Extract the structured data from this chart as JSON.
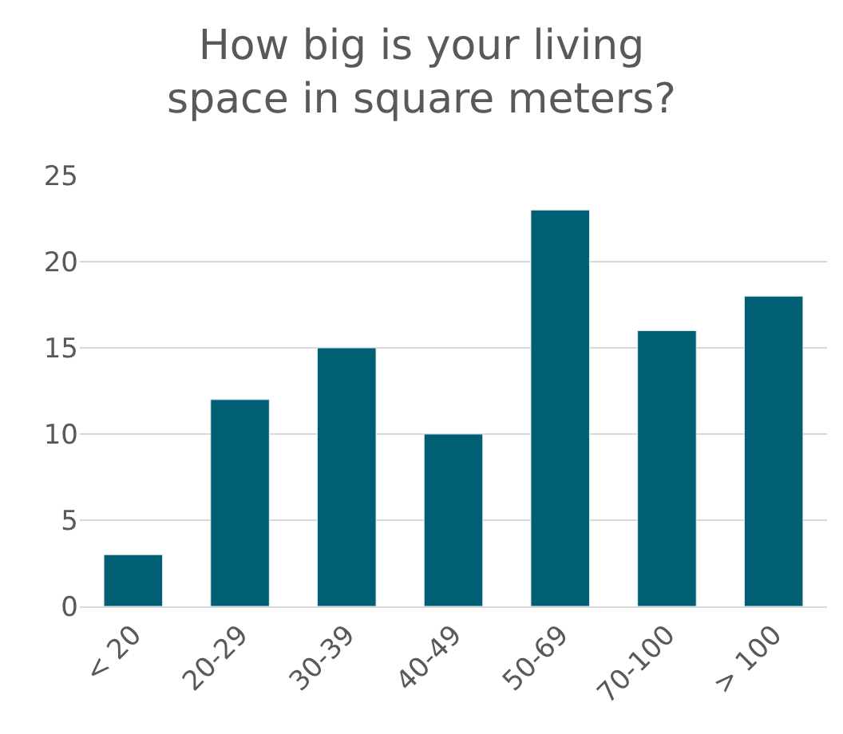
{
  "chart_data": {
    "type": "bar",
    "title": "How big is your living\nspace in square meters?",
    "categories": [
      "< 20",
      "20-29",
      "30-39",
      "40-49",
      "50-69",
      "70-100",
      "> 100"
    ],
    "values": [
      3,
      12,
      15,
      10,
      23,
      16,
      18
    ],
    "color": "#005f73",
    "ylim": [
      0,
      25
    ],
    "yticks": [
      0,
      5,
      10,
      15,
      20,
      25
    ],
    "grid": "y"
  }
}
